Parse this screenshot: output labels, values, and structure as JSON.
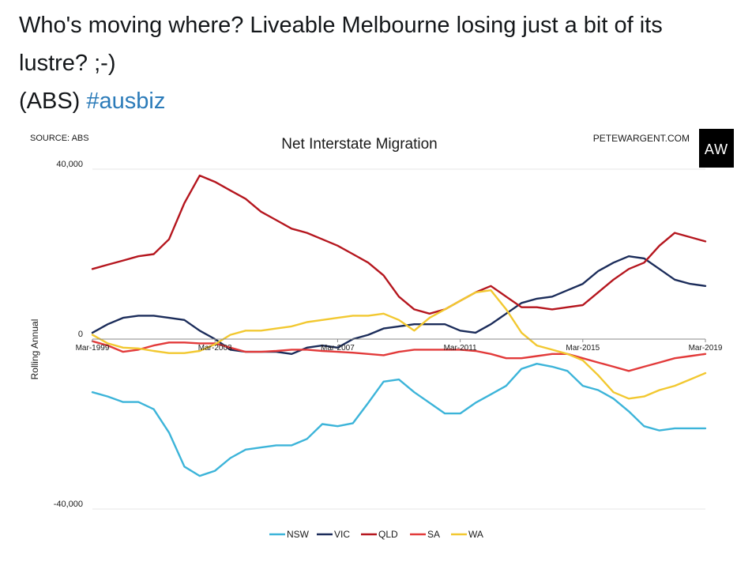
{
  "tweet": {
    "line1": "Who's moving where? Liveable Melbourne losing just a bit of its",
    "line2": "lustre? ;-)",
    "line3_prefix": "(ABS) ",
    "hashtag": "#ausbiz"
  },
  "colors": {
    "NSW": "#3cb4d9",
    "VIC": "#1b2c5a",
    "QLD": "#b5161e",
    "SA": "#e23a3a",
    "WA": "#f2c830",
    "hashtag": "#2b7bb9"
  },
  "logo": {
    "text": "AW"
  },
  "chart_data": {
    "type": "line",
    "title": "Net Interstate Migration",
    "source": "SOURCE: ABS",
    "brand": "PETEWARGENT.COM",
    "ylabel": "Rolling Annual",
    "xlabel": "",
    "ylim": [
      -40000,
      40000
    ],
    "xlim": [
      1999,
      2019
    ],
    "y_ticks": [
      {
        "value": 40000,
        "label": "40,000"
      },
      {
        "value": 0,
        "label": "0"
      },
      {
        "value": -40000,
        "label": "-40,000"
      }
    ],
    "x_ticks": [
      {
        "value": 1999,
        "label": "Mar-1999"
      },
      {
        "value": 2003,
        "label": "Mar-2003"
      },
      {
        "value": 2007,
        "label": "Mar-2007"
      },
      {
        "value": 2011,
        "label": "Mar-2011"
      },
      {
        "value": 2015,
        "label": "Mar-2015"
      },
      {
        "value": 2019,
        "label": "Mar-2019"
      }
    ],
    "x": [
      1999,
      1999.5,
      2000,
      2000.5,
      2001,
      2001.5,
      2002,
      2002.5,
      2003,
      2003.5,
      2004,
      2004.5,
      2005,
      2005.5,
      2006,
      2006.5,
      2007,
      2007.5,
      2008,
      2008.5,
      2009,
      2009.5,
      2010,
      2010.5,
      2011,
      2011.5,
      2012,
      2012.5,
      2013,
      2013.5,
      2014,
      2014.5,
      2015,
      2015.5,
      2016,
      2016.5,
      2017,
      2017.5,
      2018,
      2018.5,
      2019
    ],
    "legend_position": "bottom",
    "series": [
      {
        "name": "NSW",
        "values": [
          -12500,
          -13500,
          -14800,
          -14800,
          -16500,
          -22000,
          -30000,
          -32200,
          -31000,
          -28000,
          -26000,
          -25500,
          -25000,
          -25000,
          -23500,
          -20000,
          -20500,
          -19800,
          -15000,
          -10000,
          -9500,
          -12500,
          -15000,
          -17500,
          -17500,
          -15000,
          -13000,
          -11000,
          -7000,
          -5800,
          -6500,
          -7500,
          -11000,
          -12000,
          -14000,
          -17000,
          -20500,
          -21500,
          -21000,
          -21000,
          -21000
        ]
      },
      {
        "name": "VIC",
        "values": [
          1500,
          3500,
          5000,
          5500,
          5500,
          5000,
          4500,
          2000,
          0,
          -2500,
          -3000,
          -3000,
          -3000,
          -3500,
          -2000,
          -1500,
          -2000,
          0,
          1000,
          2500,
          3000,
          3500,
          3500,
          3500,
          2000,
          1500,
          3500,
          6000,
          8500,
          9500,
          10000,
          11500,
          13000,
          16000,
          18000,
          19500,
          19000,
          16500,
          14000,
          13000,
          12500
        ]
      },
      {
        "name": "QLD",
        "values": [
          16500,
          17500,
          18500,
          19500,
          20000,
          23500,
          32000,
          38500,
          37000,
          35000,
          33000,
          30000,
          28000,
          26000,
          25000,
          23500,
          22000,
          20000,
          18000,
          15000,
          10000,
          7000,
          6000,
          7000,
          9000,
          11000,
          12500,
          10000,
          7500,
          7500,
          7000,
          7500,
          8000,
          11000,
          14000,
          16500,
          18000,
          22000,
          25000,
          24000,
          23000
        ]
      },
      {
        "name": "SA",
        "values": [
          -500,
          -1500,
          -3000,
          -2500,
          -1500,
          -800,
          -800,
          -1000,
          -1000,
          -2000,
          -3000,
          -3000,
          -2800,
          -2500,
          -2500,
          -2800,
          -3000,
          -3200,
          -3500,
          -3800,
          -3000,
          -2500,
          -2500,
          -2500,
          -2500,
          -2800,
          -3500,
          -4500,
          -4500,
          -4000,
          -3500,
          -3500,
          -4500,
          -5500,
          -6500,
          -7500,
          -6500,
          -5500,
          -4500,
          -4000,
          -3500
        ]
      },
      {
        "name": "WA",
        "values": [
          1000,
          -1000,
          -2000,
          -2200,
          -2800,
          -3300,
          -3300,
          -2800,
          -1200,
          1000,
          2000,
          2000,
          2500,
          3000,
          4000,
          4500,
          5000,
          5500,
          5500,
          6000,
          4500,
          2000,
          5000,
          7000,
          9000,
          11000,
          11500,
          7000,
          1500,
          -1500,
          -2500,
          -3500,
          -5000,
          -8500,
          -12500,
          -14000,
          -13500,
          -12000,
          -11000,
          -9500,
          -8000
        ]
      }
    ]
  }
}
